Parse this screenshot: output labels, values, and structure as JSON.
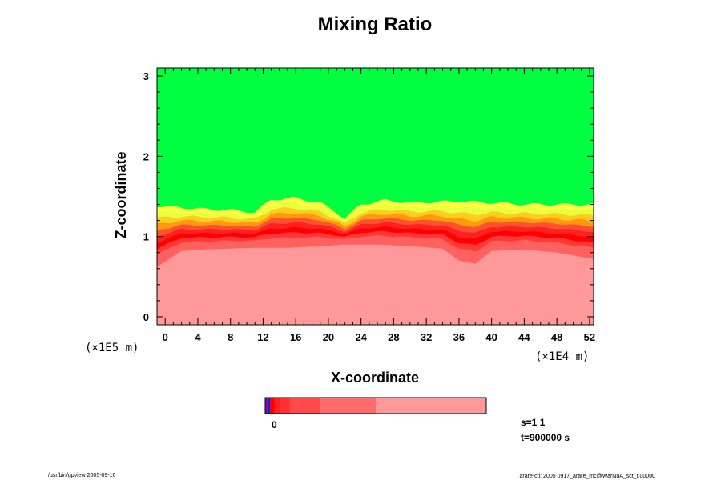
{
  "chart_data": {
    "type": "heatmap",
    "title": "Mixing Ratio",
    "xlabel": "X-coordinate",
    "ylabel": "Z-coordinate",
    "x_unit": "(×1E4 m)",
    "y_unit": "(×1E5 m)",
    "xlim": [
      -1,
      52.5
    ],
    "ylim": [
      -0.1,
      3.1
    ],
    "x_ticks": [
      0,
      4,
      8,
      12,
      16,
      20,
      24,
      28,
      32,
      36,
      40,
      44,
      48,
      52
    ],
    "y_ticks": [
      0,
      1,
      2,
      3
    ],
    "x_tick_labels": [
      "0",
      "4",
      "8",
      "12",
      "16",
      "20",
      "24",
      "28",
      "32",
      "36",
      "40",
      "44",
      "48",
      "52"
    ],
    "y_tick_labels": [
      "0",
      "1",
      "2",
      "3"
    ],
    "field": {
      "upper_region_color": "#00ff40",
      "lower_region_color": "#ff9898",
      "transition_colors": [
        "#ffff40",
        "#e8ff40",
        "#ffcc20",
        "#ff9a10",
        "#ff5030",
        "#ff2020",
        "#ff0000",
        "#ff3838",
        "#ff6060"
      ],
      "interface_profile": [
        {
          "x": -1,
          "z": 1.38
        },
        {
          "x": 2,
          "z": 1.36
        },
        {
          "x": 5,
          "z": 1.34
        },
        {
          "x": 8,
          "z": 1.33
        },
        {
          "x": 11,
          "z": 1.3
        },
        {
          "x": 13,
          "z": 1.46
        },
        {
          "x": 16,
          "z": 1.48
        },
        {
          "x": 19,
          "z": 1.42
        },
        {
          "x": 21,
          "z": 1.3
        },
        {
          "x": 22,
          "z": 1.22
        },
        {
          "x": 24,
          "z": 1.4
        },
        {
          "x": 27,
          "z": 1.45
        },
        {
          "x": 30,
          "z": 1.42
        },
        {
          "x": 33,
          "z": 1.43
        },
        {
          "x": 36,
          "z": 1.44
        },
        {
          "x": 40,
          "z": 1.42
        },
        {
          "x": 44,
          "z": 1.4
        },
        {
          "x": 48,
          "z": 1.4
        },
        {
          "x": 52.5,
          "z": 1.4
        }
      ],
      "lower_boundary_profile": [
        {
          "x": -1,
          "z": 0.62
        },
        {
          "x": 2,
          "z": 0.82
        },
        {
          "x": 5,
          "z": 0.84
        },
        {
          "x": 8,
          "z": 0.85
        },
        {
          "x": 11,
          "z": 0.86
        },
        {
          "x": 15,
          "z": 0.86
        },
        {
          "x": 19,
          "z": 0.88
        },
        {
          "x": 22,
          "z": 0.9
        },
        {
          "x": 26,
          "z": 0.9
        },
        {
          "x": 30,
          "z": 0.88
        },
        {
          "x": 34,
          "z": 0.85
        },
        {
          "x": 36,
          "z": 0.7
        },
        {
          "x": 38,
          "z": 0.66
        },
        {
          "x": 40,
          "z": 0.82
        },
        {
          "x": 44,
          "z": 0.84
        },
        {
          "x": 48,
          "z": 0.8
        },
        {
          "x": 52.5,
          "z": 0.72
        }
      ]
    },
    "colorbar": {
      "segments": [
        {
          "color": "#7a10b0",
          "weight": 1
        },
        {
          "color": "#2020d0",
          "weight": 0.6
        },
        {
          "color": "#ff0000",
          "weight": 1.4
        },
        {
          "color": "#ff2020",
          "weight": 2
        },
        {
          "color": "#ff3030",
          "weight": 3
        },
        {
          "color": "#ff4a4a",
          "weight": 10
        },
        {
          "color": "#ff6a6a",
          "weight": 18
        },
        {
          "color": "#ff9898",
          "weight": 36
        }
      ],
      "label": "0"
    },
    "annotations": {
      "s": "s=1 1",
      "t": "t=900000 s"
    },
    "footer": {
      "left": "/usr/bin/gpview 2005-09-16",
      "right": "arare-ctl: 2005 0917_arare_mc@WarNuA_sct_t.00000"
    }
  }
}
